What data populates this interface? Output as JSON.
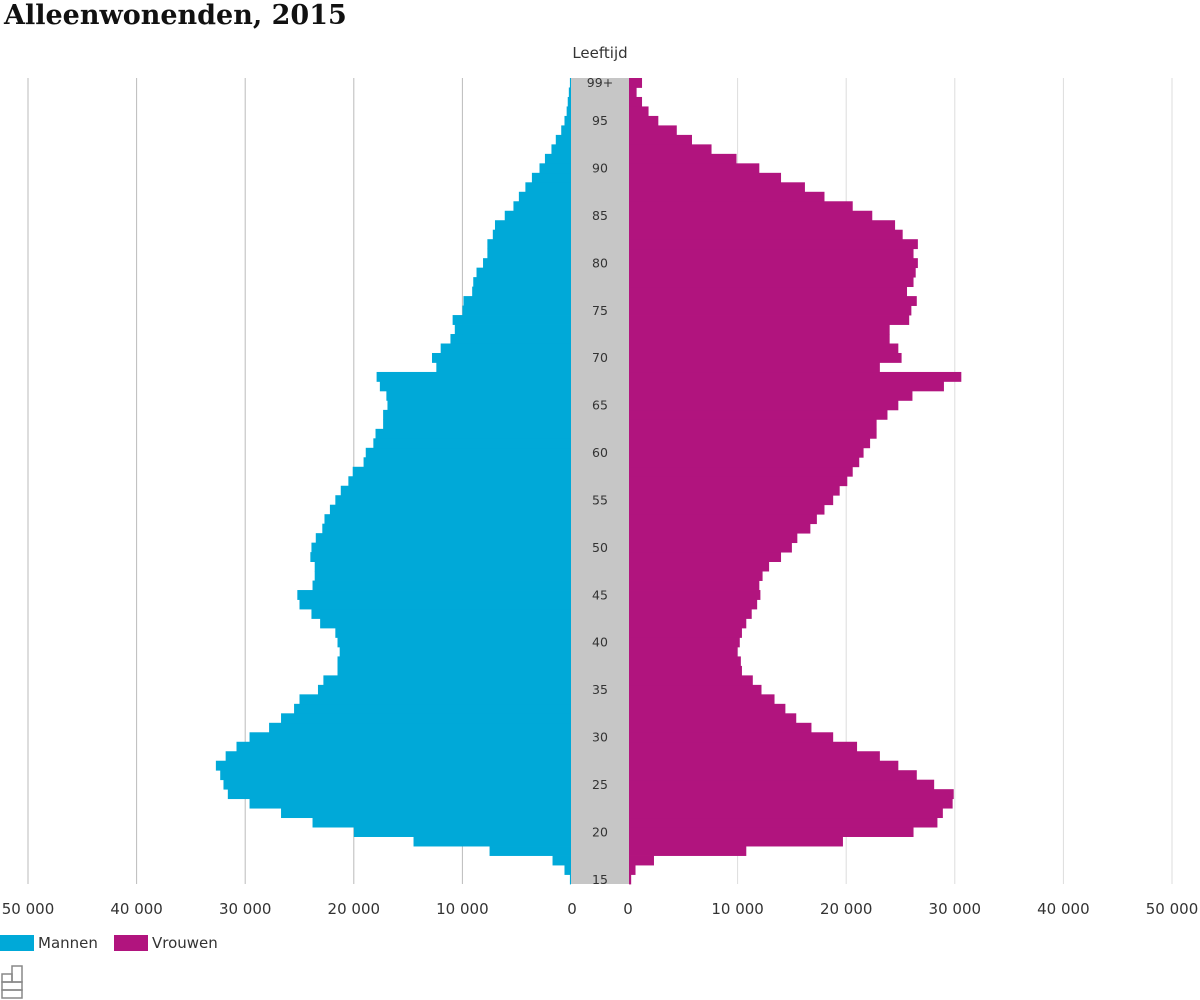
{
  "chart_data": {
    "type": "bar",
    "orientation": "horizontal-pyramid",
    "title": "Alleenwonenden, 2015",
    "axis_label_center": "Leeftijd",
    "xlim": [
      0,
      50000
    ],
    "x_ticks": [
      0,
      10000,
      20000,
      30000,
      40000,
      50000
    ],
    "x_tick_labels": [
      "0",
      "10 000",
      "20 000",
      "30 000",
      "40 000",
      "50 000"
    ],
    "age_labels": [
      "15",
      "20",
      "25",
      "30",
      "35",
      "40",
      "45",
      "50",
      "55",
      "60",
      "65",
      "70",
      "75",
      "80",
      "85",
      "90",
      "95",
      "99+"
    ],
    "ages": [
      15,
      16,
      17,
      18,
      19,
      20,
      21,
      22,
      23,
      24,
      25,
      26,
      27,
      28,
      29,
      30,
      31,
      32,
      33,
      34,
      35,
      36,
      37,
      38,
      39,
      40,
      41,
      42,
      43,
      44,
      45,
      46,
      47,
      48,
      49,
      50,
      51,
      52,
      53,
      54,
      55,
      56,
      57,
      58,
      59,
      60,
      61,
      62,
      63,
      64,
      65,
      66,
      67,
      68,
      69,
      70,
      71,
      72,
      73,
      74,
      75,
      76,
      77,
      78,
      79,
      80,
      81,
      82,
      83,
      84,
      85,
      86,
      87,
      88,
      89,
      90,
      91,
      92,
      93,
      94,
      95,
      96,
      97,
      98,
      "99+"
    ],
    "grid": true,
    "legend_position": "bottom-left",
    "series": [
      {
        "name": "Mannen",
        "color": "#00a9d8",
        "side": "left",
        "values": [
          100,
          600,
          1700,
          7500,
          14500,
          20000,
          23800,
          26700,
          29600,
          31600,
          32000,
          32300,
          32700,
          31800,
          30800,
          29600,
          27800,
          26700,
          25500,
          25000,
          23300,
          22800,
          21500,
          21500,
          21300,
          21500,
          21700,
          23100,
          23900,
          25000,
          25200,
          23800,
          23600,
          23600,
          24000,
          23900,
          23500,
          22900,
          22700,
          22200,
          21700,
          21200,
          20500,
          20100,
          19100,
          18900,
          18200,
          18000,
          17300,
          17300,
          16900,
          17000,
          17600,
          17900,
          12400,
          12800,
          12000,
          11100,
          10700,
          10900,
          10000,
          9900,
          9100,
          9000,
          8700,
          8100,
          7700,
          7700,
          7200,
          7000,
          6100,
          5300,
          4800,
          4200,
          3600,
          2900,
          2400,
          1800,
          1400,
          900,
          600,
          400,
          300,
          200,
          100
        ]
      },
      {
        "name": "Vrouwen",
        "color": "#b1147e",
        "side": "right",
        "values": [
          200,
          600,
          2300,
          10800,
          19700,
          26200,
          28400,
          28900,
          29800,
          29900,
          28100,
          26500,
          24800,
          23100,
          21000,
          18800,
          16800,
          15400,
          14400,
          13400,
          12200,
          11400,
          10400,
          10300,
          10000,
          10200,
          10400,
          10800,
          11300,
          11800,
          12100,
          12000,
          12300,
          12900,
          14000,
          15000,
          15500,
          16700,
          17300,
          18000,
          18800,
          19400,
          20100,
          20600,
          21200,
          21600,
          22200,
          22800,
          22800,
          23800,
          24800,
          26100,
          29000,
          30600,
          23100,
          25100,
          24800,
          24000,
          24000,
          25800,
          26000,
          26500,
          25600,
          26200,
          26400,
          26600,
          26200,
          26600,
          25200,
          24500,
          22400,
          20600,
          18000,
          16200,
          14000,
          12000,
          9900,
          7600,
          5800,
          4400,
          2700,
          1800,
          1200,
          700,
          1200
        ]
      }
    ]
  }
}
